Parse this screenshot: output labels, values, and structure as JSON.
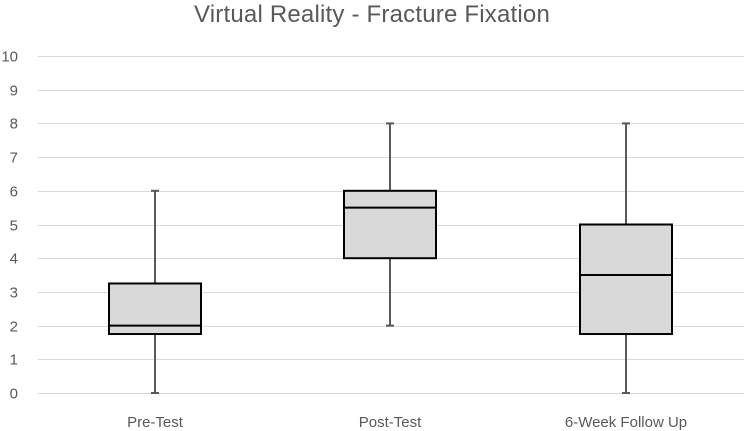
{
  "chart_data": {
    "type": "box",
    "title": "Virtual Reality - Fracture Fixation",
    "xlabel": "",
    "ylabel": "",
    "ylim": [
      0,
      10
    ],
    "yticks": [
      0,
      1,
      2,
      3,
      4,
      5,
      6,
      7,
      8,
      9,
      10
    ],
    "grid": true,
    "categories": [
      "Pre-Test",
      "Post-Test",
      "6-Week Follow Up"
    ],
    "boxes": [
      {
        "category": "Pre-Test",
        "min": 0,
        "q1": 1.75,
        "median": 2,
        "q3": 3.25,
        "max": 6
      },
      {
        "category": "Post-Test",
        "min": 2,
        "q1": 4,
        "median": 5.5,
        "q3": 6,
        "max": 8
      },
      {
        "category": "6-Week Follow Up",
        "min": 0,
        "q1": 1.75,
        "median": 3.5,
        "q3": 5,
        "max": 8
      }
    ],
    "colors": {
      "box_fill": "#d9d9d9",
      "box_stroke": "#000000",
      "whisker": "#595959",
      "grid": "#d9d9d9",
      "text": "#595959"
    }
  }
}
